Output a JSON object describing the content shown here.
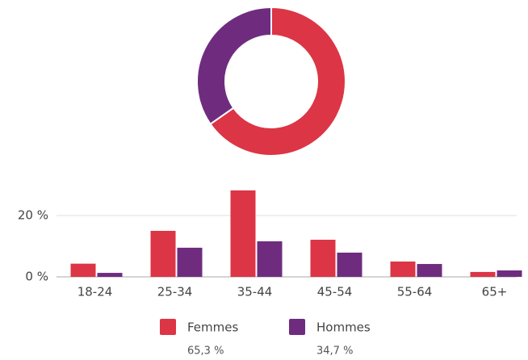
{
  "chart_data": [
    {
      "type": "pie",
      "values": [
        65.3,
        34.7
      ],
      "value_labels": [
        "65,3 %",
        "34,7 %"
      ],
      "colors": [
        "#dc3545",
        "#6f2c7f"
      ],
      "donut": true
    },
    {
      "type": "bar",
      "categories": [
        "18-24",
        "25-34",
        "35-44",
        "45-54",
        "55-64",
        "65+"
      ],
      "series": [
        {
          "name": "Femmes",
          "color": "#dc3545",
          "values": [
            4.3,
            15,
            28.2,
            12.1,
            5,
            1.6
          ]
        },
        {
          "name": "Hommes",
          "color": "#6f2c7f",
          "values": [
            1.3,
            9.5,
            11.6,
            7.9,
            4.2,
            2.1
          ]
        }
      ],
      "ylim": [
        0,
        30
      ],
      "yticks": [
        {
          "value": 0,
          "label": "0 %"
        },
        {
          "value": 20,
          "label": "20 %"
        }
      ],
      "grid": true
    }
  ]
}
